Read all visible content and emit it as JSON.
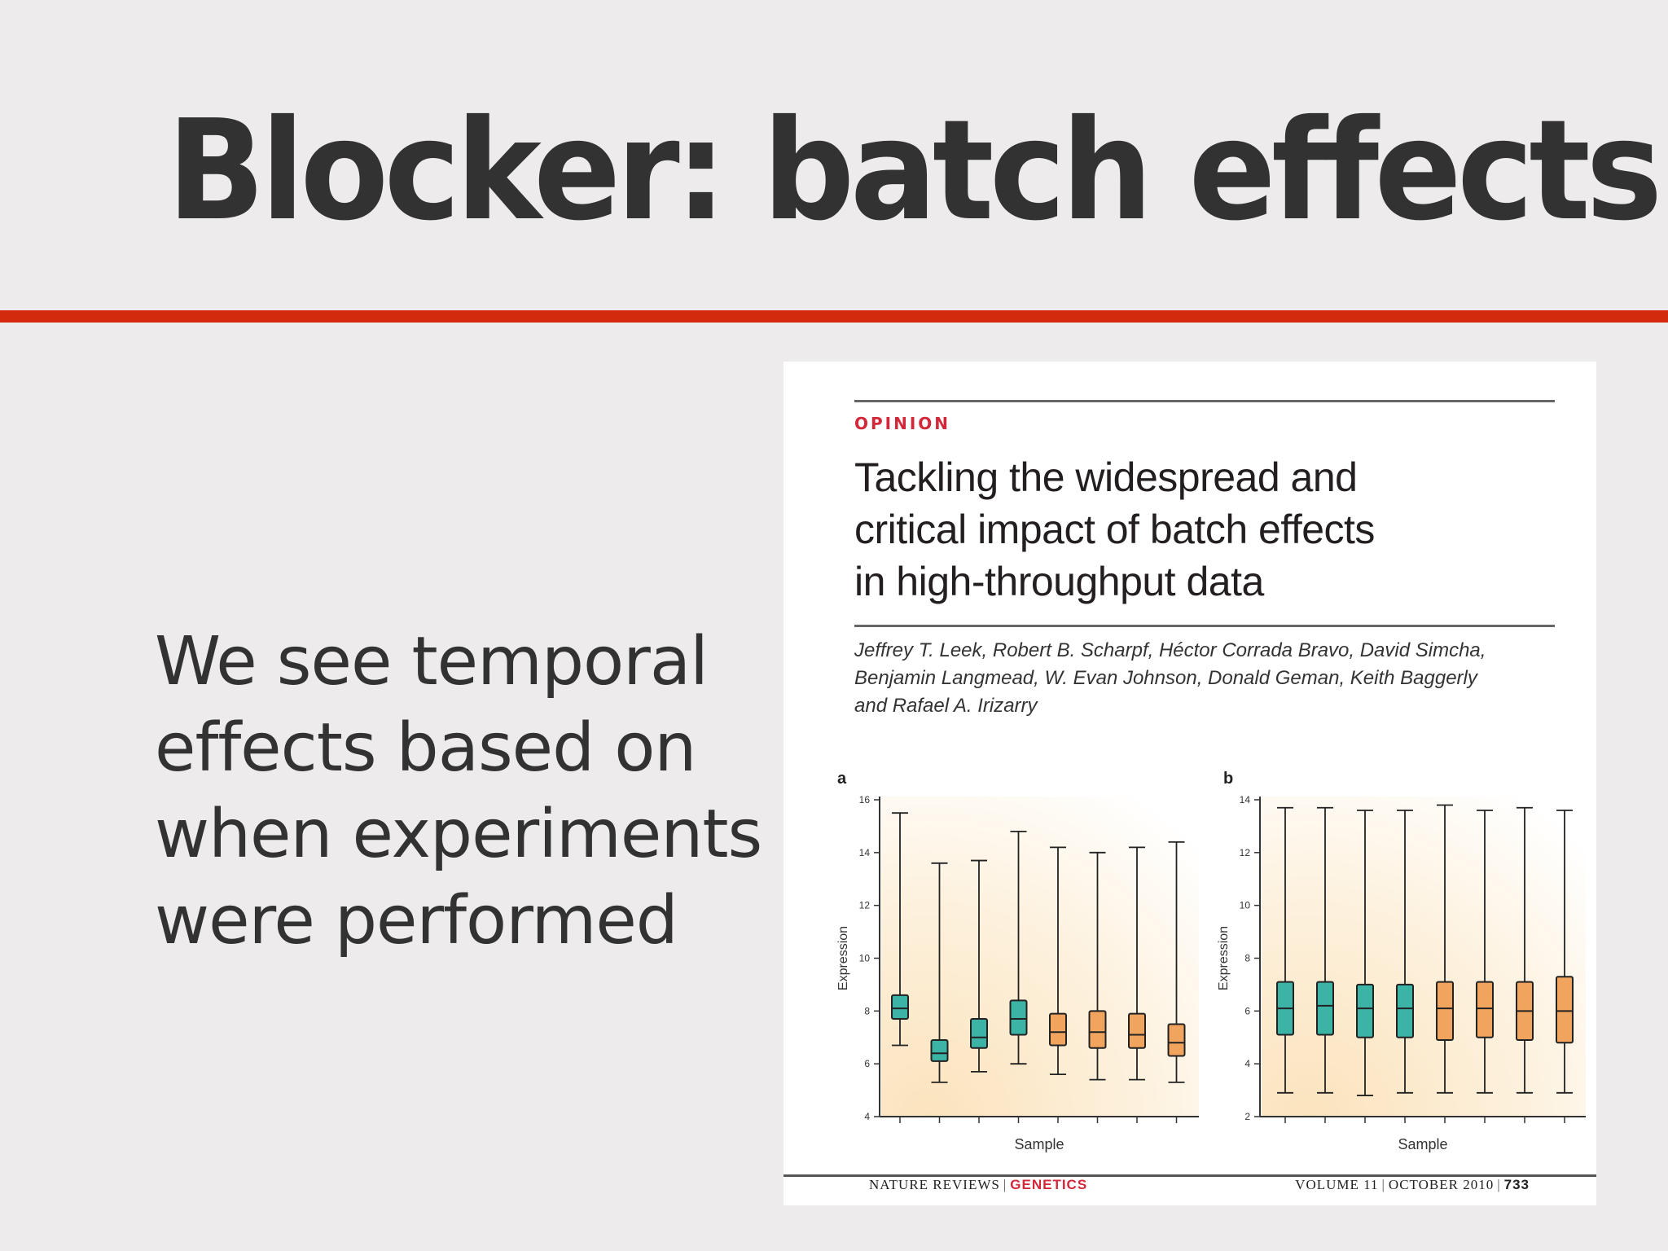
{
  "slide": {
    "title": "Blocker: batch effects",
    "body_lines": [
      "We see temporal",
      "effects based on",
      "when experiments",
      "were performed"
    ]
  },
  "paper": {
    "section": "OPINION",
    "title_lines": [
      "Tackling the widespread and",
      "critical impact of batch effects",
      "in high-throughput data"
    ],
    "author_lines": [
      "Jeffrey T. Leek, Robert B. Scharpf, Héctor Corrada Bravo, David Simcha,",
      "Benjamin Langmead, W. Evan Johnson, Donald Geman, Keith Baggerly",
      "and Rafael A. Irizarry"
    ],
    "footer": {
      "journal": "NATURE REVIEWS",
      "journal_section": "GENETICS",
      "volume": "VOLUME 11",
      "date": "OCTOBER 2010",
      "page": "733"
    }
  },
  "colors": {
    "accent_rule": "#d32a0d",
    "group1_fill": "#3bb3a5",
    "group2_fill": "#f0a45e"
  },
  "chart_data": [
    {
      "type": "boxplot",
      "panel_label": "a",
      "xlabel": "Sample",
      "ylabel": "Expression",
      "ylim": [
        4,
        16
      ],
      "yticks": [
        4,
        6,
        8,
        10,
        12,
        14,
        16
      ],
      "boxes": [
        {
          "group": 1,
          "min": 6.7,
          "q1": 7.7,
          "median": 8.1,
          "q3": 8.6,
          "max": 15.5
        },
        {
          "group": 1,
          "min": 5.3,
          "q1": 6.1,
          "median": 6.4,
          "q3": 6.9,
          "max": 13.6
        },
        {
          "group": 1,
          "min": 5.7,
          "q1": 6.6,
          "median": 7.0,
          "q3": 7.7,
          "max": 13.7
        },
        {
          "group": 1,
          "min": 6.0,
          "q1": 7.1,
          "median": 7.7,
          "q3": 8.4,
          "max": 14.8
        },
        {
          "group": 2,
          "min": 5.6,
          "q1": 6.7,
          "median": 7.2,
          "q3": 7.9,
          "max": 14.2
        },
        {
          "group": 2,
          "min": 5.4,
          "q1": 6.6,
          "median": 7.2,
          "q3": 8.0,
          "max": 14.0
        },
        {
          "group": 2,
          "min": 5.4,
          "q1": 6.6,
          "median": 7.1,
          "q3": 7.9,
          "max": 14.2
        },
        {
          "group": 2,
          "min": 5.3,
          "q1": 6.3,
          "median": 6.8,
          "q3": 7.5,
          "max": 14.4
        }
      ]
    },
    {
      "type": "boxplot",
      "panel_label": "b",
      "xlabel": "Sample",
      "ylabel": "Expression",
      "ylim": [
        2,
        14
      ],
      "yticks": [
        2,
        4,
        6,
        8,
        10,
        12,
        14
      ],
      "boxes": [
        {
          "group": 1,
          "min": 2.9,
          "q1": 5.1,
          "median": 6.1,
          "q3": 7.1,
          "max": 13.7
        },
        {
          "group": 1,
          "min": 2.9,
          "q1": 5.1,
          "median": 6.2,
          "q3": 7.1,
          "max": 13.7
        },
        {
          "group": 1,
          "min": 2.8,
          "q1": 5.0,
          "median": 6.1,
          "q3": 7.0,
          "max": 13.6
        },
        {
          "group": 1,
          "min": 2.9,
          "q1": 5.0,
          "median": 6.1,
          "q3": 7.0,
          "max": 13.6
        },
        {
          "group": 2,
          "min": 2.9,
          "q1": 4.9,
          "median": 6.1,
          "q3": 7.1,
          "max": 13.8
        },
        {
          "group": 2,
          "min": 2.9,
          "q1": 5.0,
          "median": 6.1,
          "q3": 7.1,
          "max": 13.6
        },
        {
          "group": 2,
          "min": 2.9,
          "q1": 4.9,
          "median": 6.0,
          "q3": 7.1,
          "max": 13.7
        },
        {
          "group": 2,
          "min": 2.9,
          "q1": 4.8,
          "median": 6.0,
          "q3": 7.3,
          "max": 13.6
        }
      ]
    }
  ]
}
